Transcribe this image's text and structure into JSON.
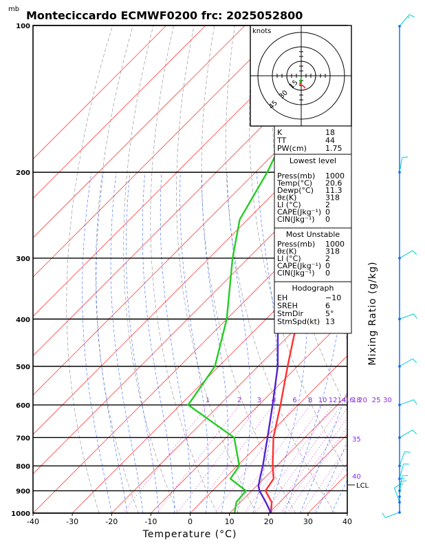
{
  "header": {
    "unit_label": "mb",
    "title": "Monteciccardo ECMWF0200  frc: 2025052800"
  },
  "axes": {
    "xlabel": "Temperature (°C)",
    "right_label": "Mixing Ratio (g/kg)"
  },
  "hodograph": {
    "label": "knots",
    "ring_labels": [
      "15",
      "30",
      "45"
    ],
    "points": [
      [
        0.0,
        2.0
      ],
      [
        -0.5,
        4.5
      ],
      [
        -1.0,
        6.5
      ],
      [
        -1.5,
        7.5
      ],
      [
        -1.0,
        9.0
      ],
      [
        1.0,
        10.0
      ],
      [
        2.5,
        11.0
      ],
      [
        3.5,
        12.0
      ],
      [
        4.0,
        13.0
      ]
    ]
  },
  "indices_panel": {
    "rows": [
      {
        "label": "K",
        "value": "18"
      },
      {
        "label": "TT",
        "value": "44"
      },
      {
        "label": "PW(cm)",
        "value": "1.75"
      }
    ]
  },
  "lowest_level_panel": {
    "title": "Lowest level",
    "rows": [
      {
        "label": "Press(mb)",
        "value": "1000"
      },
      {
        "label": "Temp(°C)",
        "value": "20.6"
      },
      {
        "label": "Dewp(°C)",
        "value": "11.3"
      },
      {
        "label": "θε(K)",
        "value": "318"
      },
      {
        "label": "LI  (°C)",
        "value": "2"
      },
      {
        "label": "CAPE(Jkg⁻¹)",
        "value": "0"
      },
      {
        "label": "CIN(Jkg⁻¹)",
        "value": "0"
      }
    ]
  },
  "most_unstable_panel": {
    "title": "Most Unstable",
    "rows": [
      {
        "label": "Press(mb)",
        "value": "1000"
      },
      {
        "label": "θε(K)",
        "value": "318"
      },
      {
        "label": "LI  (°C)",
        "value": "2"
      },
      {
        "label": "CAPE(Jkg⁻¹)",
        "value": "0"
      },
      {
        "label": "CIN(Jkg⁻¹)",
        "value": "0"
      }
    ]
  },
  "hodograph_panel": {
    "title": "Hodograph",
    "rows": [
      {
        "label": "EH",
        "value": "−10"
      },
      {
        "label": "SREH",
        "value": "6"
      },
      {
        "label": "StmDir",
        "value": "5°"
      },
      {
        "label": "StmSpd(kt)",
        "value": "13"
      }
    ]
  },
  "colors": {
    "temperature": "#ff3030",
    "dewpoint": "#22cc22",
    "parcel": "#5522cc",
    "isotherm": "#ff4444",
    "dry_adiabat": "#888888",
    "moist_adiabat": "#3366ff",
    "mixing_ratio": "#cc22cc",
    "wind_barb": "#00cccc"
  },
  "chart_data": {
    "type": "line",
    "title": "Monteciccardo ECMWF0200  frc: 2025052800",
    "xlabel": "Temperature (°C)",
    "ylabel": "",
    "y_unit": "mb",
    "xlim": [
      -40,
      40
    ],
    "ylim": [
      1000,
      100
    ],
    "y_scale": "log",
    "x_ticks": [
      -40,
      -30,
      -20,
      -10,
      0,
      10,
      20,
      30,
      40
    ],
    "pressure_levels": [
      1000,
      900,
      800,
      700,
      600,
      500,
      400,
      300,
      200,
      100
    ],
    "mixing_ratio_labels": [
      "1",
      "2",
      "3",
      "4",
      "6",
      "8",
      "10",
      "12",
      "14",
      "16",
      "18",
      "20",
      "25",
      "30"
    ],
    "mixing_ratio_values": [
      1,
      2,
      3,
      4,
      6,
      8,
      10,
      12,
      14,
      16,
      18,
      20,
      25,
      30
    ],
    "theta_e_labels": [
      "35",
      "40"
    ],
    "lcl_label": "LCL",
    "lcl_pressure": 880,
    "series": [
      {
        "name": "Temperature",
        "points": [
          [
            1000,
            20.6
          ],
          [
            950,
            18.0
          ],
          [
            900,
            13.5
          ],
          [
            850,
            12.5
          ],
          [
            800,
            9.0
          ],
          [
            700,
            2.0
          ],
          [
            600,
            -4.5
          ],
          [
            500,
            -12.5
          ],
          [
            400,
            -22.0
          ],
          [
            300,
            -35.5
          ],
          [
            250,
            -46.0
          ],
          [
            200,
            -46.0
          ],
          [
            150,
            -44.0
          ],
          [
            100,
            -41.0
          ]
        ]
      },
      {
        "name": "Dewpoint",
        "points": [
          [
            1000,
            11.3
          ],
          [
            950,
            9.0
          ],
          [
            900,
            8.5
          ],
          [
            850,
            1.5
          ],
          [
            800,
            0.5
          ],
          [
            700,
            -8.0
          ],
          [
            600,
            -28.0
          ],
          [
            500,
            -31.0
          ],
          [
            400,
            -40.0
          ],
          [
            300,
            -54.0
          ],
          [
            250,
            -62.0
          ],
          [
            200,
            -67.0
          ],
          [
            150,
            -75.0
          ],
          [
            100,
            -82.0
          ]
        ]
      },
      {
        "name": "Parcel",
        "points": [
          [
            1000,
            20.6
          ],
          [
            950,
            16.5
          ],
          [
            900,
            12.0
          ],
          [
            880,
            10.5
          ],
          [
            850,
            9.0
          ],
          [
            800,
            6.5
          ],
          [
            700,
            0.5
          ],
          [
            600,
            -6.5
          ],
          [
            500,
            -15.0
          ],
          [
            400,
            -27.0
          ],
          [
            300,
            -43.0
          ],
          [
            250,
            -53.0
          ],
          [
            200,
            -64.0
          ],
          [
            150,
            -79.0
          ],
          [
            100,
            -96.0
          ]
        ]
      }
    ],
    "wind_profile": [
      {
        "p": 1000,
        "dir": 250,
        "spd": 10
      },
      {
        "p": 950,
        "dir": 340,
        "spd": 10
      },
      {
        "p": 925,
        "dir": 5,
        "spd": 15
      },
      {
        "p": 900,
        "dir": 10,
        "spd": 15
      },
      {
        "p": 850,
        "dir": 15,
        "spd": 10
      },
      {
        "p": 800,
        "dir": 20,
        "spd": 10
      },
      {
        "p": 700,
        "dir": 60,
        "spd": 10
      },
      {
        "p": 600,
        "dir": 70,
        "spd": 10
      },
      {
        "p": 500,
        "dir": 60,
        "spd": 10
      },
      {
        "p": 400,
        "dir": 70,
        "spd": 10
      },
      {
        "p": 300,
        "dir": 60,
        "spd": 10
      },
      {
        "p": 200,
        "dir": 10,
        "spd": 10
      },
      {
        "p": 100,
        "dir": 40,
        "spd": 15
      }
    ]
  }
}
